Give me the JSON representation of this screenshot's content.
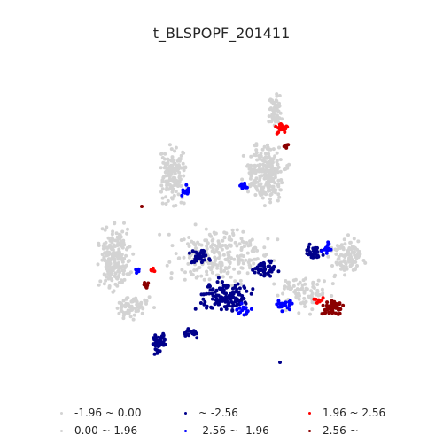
{
  "figure": {
    "title": "t_BLSPOPF_201411"
  },
  "legend": {
    "items": [
      {
        "label": "-1.96 ~ 0.00",
        "color": "#d3d3d3"
      },
      {
        "label": "~ -2.56",
        "color": "#00008b"
      },
      {
        "label": "1.96 ~ 2.56",
        "color": "#ff0000"
      },
      {
        "label": "0.00 ~ 1.96",
        "color": "#d3d3d3"
      },
      {
        "label": "-2.56 ~ -1.96",
        "color": "#0000ff"
      },
      {
        "label": "2.56 ~",
        "color": "#8b0000"
      }
    ]
  },
  "chart_data": {
    "type": "scatter",
    "title": "t_BLSPOPF_201411",
    "axes_visible": false,
    "categories": [
      "-1.96 ~ 0.00",
      "0.00 ~ 1.96",
      "~ -2.56",
      "-2.56 ~ -1.96",
      "1.96 ~ 2.56",
      "2.56 ~"
    ],
    "colors": {
      "-1.96 ~ 0.00": "#d3d3d3",
      "0.00 ~ 1.96": "#d3d3d3",
      "~ -2.56": "#00008b",
      "-2.56 ~ -1.96": "#0000ff",
      "1.96 ~ 2.56": "#ff0000",
      "2.56 ~": "#8b0000"
    }
  }
}
